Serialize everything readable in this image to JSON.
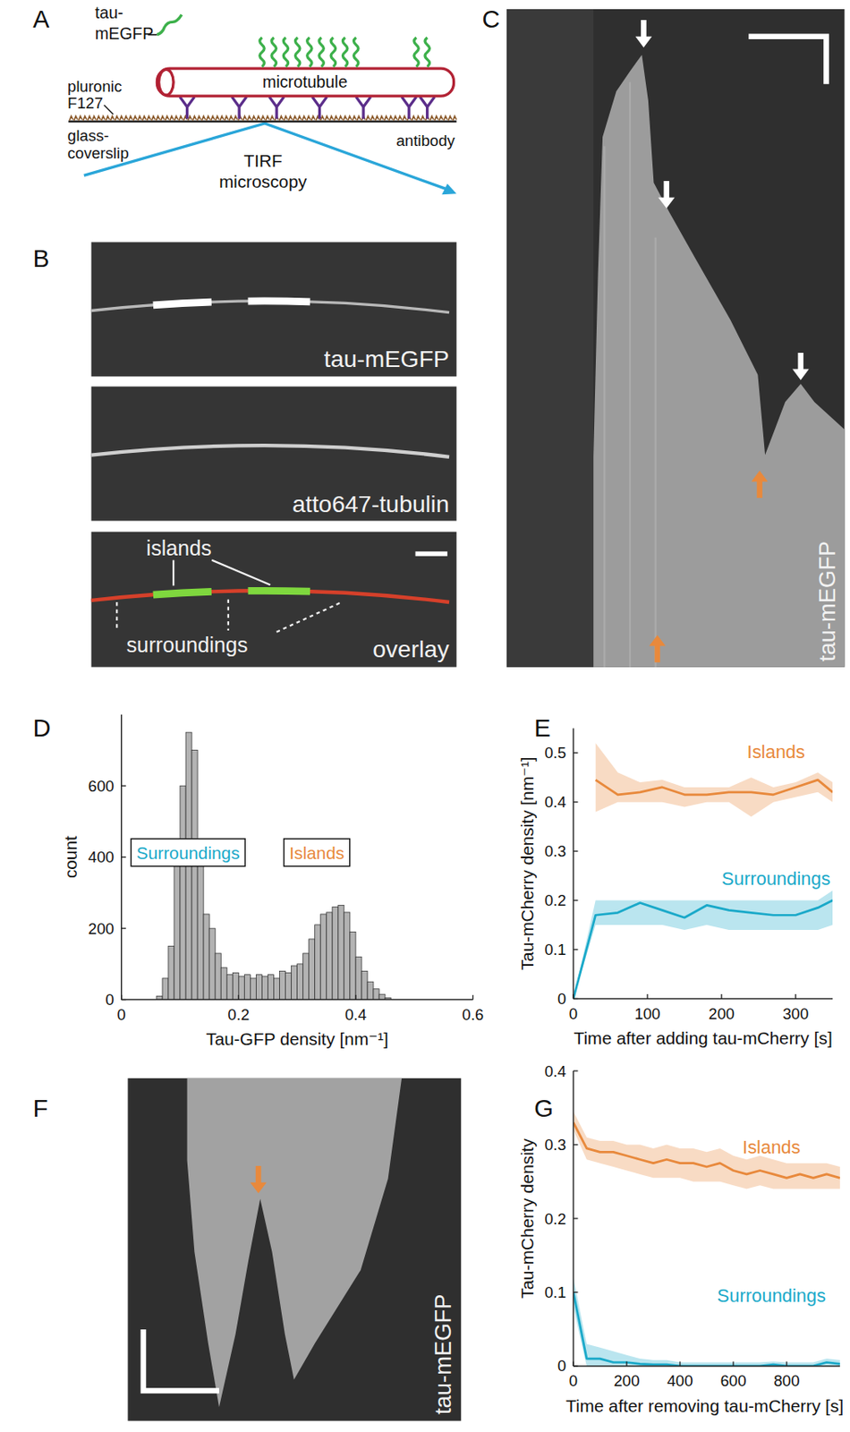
{
  "panel_letters": [
    "A",
    "B",
    "C",
    "D",
    "E",
    "F",
    "G"
  ],
  "schematic": {
    "tau_label": [
      "tau-",
      "mEGFP"
    ],
    "pluronic_label": [
      "pluronic",
      "F127"
    ],
    "microtubule_label": "microtubule",
    "coverslip_label": [
      "glass-",
      "coverslip"
    ],
    "antibody_label": "antibody",
    "tirf_label": [
      "TIRF",
      "microscopy"
    ]
  },
  "micrographs": {
    "channels": [
      "tau-mEGFP",
      "atto647-tubulin",
      "overlay"
    ],
    "islands_label": "islands",
    "surroundings_label": "surroundings"
  },
  "kymographs": [
    {
      "label": "tau-mEGFP"
    },
    {
      "label": "tau-mEGFP"
    }
  ],
  "chart_data": [
    {
      "type": "histogram",
      "color": "#b3b3b3",
      "bins": [
        0.06,
        0.07,
        0.08,
        0.09,
        0.1,
        0.11,
        0.12,
        0.13,
        0.14,
        0.15,
        0.16,
        0.17,
        0.18,
        0.19,
        0.2,
        0.21,
        0.22,
        0.23,
        0.24,
        0.25,
        0.26,
        0.27,
        0.28,
        0.29,
        0.3,
        0.31,
        0.32,
        0.33,
        0.34,
        0.35,
        0.36,
        0.37,
        0.38,
        0.39,
        0.4,
        0.41,
        0.42,
        0.43,
        0.44,
        0.45,
        0.46
      ],
      "counts": [
        10,
        60,
        150,
        380,
        600,
        750,
        700,
        420,
        240,
        200,
        130,
        90,
        70,
        75,
        65,
        70,
        60,
        70,
        65,
        70,
        60,
        80,
        75,
        95,
        100,
        130,
        170,
        210,
        240,
        245,
        260,
        265,
        245,
        190,
        120,
        80,
        50,
        30,
        15,
        5
      ],
      "xlim": [
        0,
        0.6
      ],
      "xticks": [
        0,
        0.2,
        0.4,
        0.6
      ],
      "ylim": [
        0,
        800
      ],
      "yticks": [
        0,
        200,
        400,
        600
      ],
      "x_label": "Tau-GFP density [nm⁻¹]",
      "y_label": "count",
      "annotations": [
        {
          "text": "Surroundings",
          "color": "#1aa9c9"
        },
        {
          "text": "Islands",
          "color": "#e8893c"
        }
      ]
    },
    {
      "type": "line",
      "x": [
        0,
        30,
        60,
        90,
        120,
        150,
        180,
        210,
        240,
        270,
        300,
        330,
        350
      ],
      "series": [
        {
          "name": "Islands",
          "color": "#e8893c",
          "values": [
            null,
            0.445,
            0.415,
            0.42,
            0.43,
            0.415,
            0.415,
            0.42,
            0.42,
            0.415,
            0.43,
            0.445,
            0.42
          ],
          "lower": [
            null,
            0.38,
            0.4,
            0.4,
            0.4,
            0.39,
            0.4,
            0.4,
            0.37,
            0.4,
            0.41,
            0.42,
            0.4
          ],
          "upper": [
            null,
            0.52,
            0.46,
            0.44,
            0.445,
            0.43,
            0.43,
            0.43,
            0.45,
            0.43,
            0.44,
            0.46,
            0.44
          ]
        },
        {
          "name": "Surroundings",
          "color": "#1aa9c9",
          "values": [
            0,
            0.17,
            0.175,
            0.195,
            0.18,
            0.165,
            0.19,
            0.18,
            0.175,
            0.17,
            0.17,
            0.185,
            0.2
          ],
          "lower": [
            0,
            0.15,
            0.15,
            0.15,
            0.15,
            0.14,
            0.15,
            0.14,
            0.14,
            0.14,
            0.14,
            0.14,
            0.15
          ],
          "upper": [
            0,
            0.2,
            0.2,
            0.2,
            0.2,
            0.2,
            0.2,
            0.2,
            0.2,
            0.2,
            0.2,
            0.2,
            0.22
          ]
        }
      ],
      "xlim": [
        0,
        350
      ],
      "xticks": [
        0,
        100,
        200,
        300
      ],
      "ylim": [
        0,
        0.55
      ],
      "yticks": [
        0,
        0.1,
        0.2,
        0.3,
        0.4,
        0.5
      ],
      "x_label": "Time after adding tau-mCherry [s]",
      "y_label": "Tau-mCherry density [nm⁻¹]"
    },
    {
      "type": "line",
      "x": [
        0,
        50,
        100,
        150,
        200,
        250,
        300,
        350,
        400,
        450,
        500,
        550,
        600,
        650,
        700,
        750,
        800,
        850,
        900,
        950,
        1000
      ],
      "series": [
        {
          "name": "Islands",
          "color": "#e8893c",
          "values": [
            0.33,
            0.295,
            0.29,
            0.29,
            0.285,
            0.28,
            0.275,
            0.28,
            0.275,
            0.275,
            0.27,
            0.275,
            0.265,
            0.26,
            0.265,
            0.26,
            0.255,
            0.26,
            0.255,
            0.26,
            0.255
          ],
          "lower": [
            0.32,
            0.28,
            0.275,
            0.27,
            0.265,
            0.26,
            0.255,
            0.255,
            0.255,
            0.25,
            0.25,
            0.25,
            0.245,
            0.24,
            0.245,
            0.24,
            0.24,
            0.24,
            0.24,
            0.24,
            0.24
          ],
          "upper": [
            0.345,
            0.31,
            0.305,
            0.305,
            0.3,
            0.3,
            0.295,
            0.3,
            0.295,
            0.295,
            0.29,
            0.295,
            0.285,
            0.28,
            0.285,
            0.28,
            0.275,
            0.275,
            0.275,
            0.275,
            0.27
          ]
        },
        {
          "name": "Surroundings",
          "color": "#1aa9c9",
          "values": [
            0.1,
            0.01,
            0.01,
            0.005,
            0.005,
            0.003,
            0.002,
            0.002,
            0,
            0,
            0,
            0,
            0,
            0,
            0,
            0.002,
            0,
            0,
            0,
            0.005,
            0.003
          ],
          "lower": [
            0.08,
            0,
            0,
            0,
            0,
            0,
            0,
            0,
            0,
            0,
            0,
            0,
            0,
            0,
            0,
            0,
            0,
            0,
            0,
            0,
            0
          ],
          "upper": [
            0.12,
            0.03,
            0.025,
            0.02,
            0.015,
            0.01,
            0.008,
            0.008,
            0.005,
            0.005,
            0.005,
            0.005,
            0.005,
            0.005,
            0.005,
            0.006,
            0.005,
            0.005,
            0.005,
            0.01,
            0.008
          ]
        }
      ],
      "xlim": [
        0,
        1000
      ],
      "xticks": [
        0,
        200,
        400,
        600,
        800
      ],
      "ylim": [
        0,
        0.4
      ],
      "yticks": [
        0,
        0.1,
        0.2,
        0.3,
        0.4
      ],
      "x_label": "Time after removing tau-mCherry [s]",
      "y_label": "Tau-mCherry density"
    }
  ]
}
